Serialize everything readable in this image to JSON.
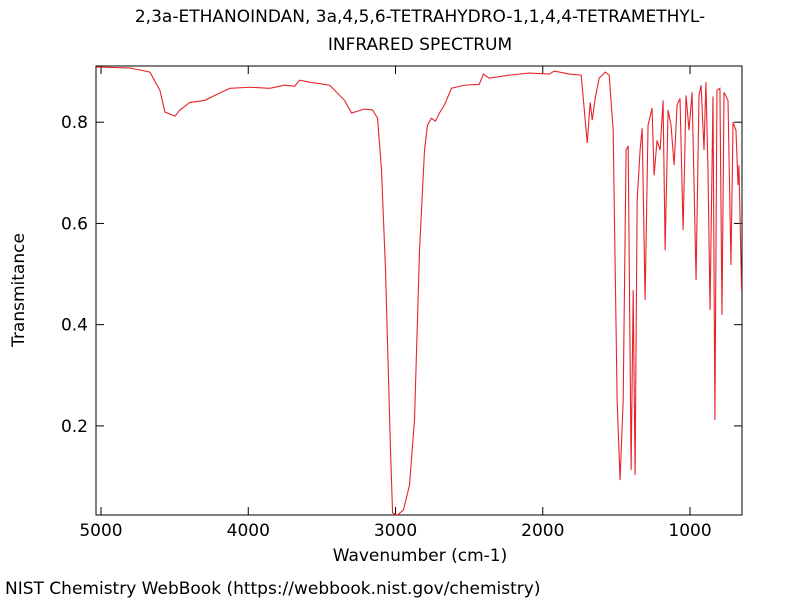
{
  "chart_data": {
    "type": "line",
    "title": [
      "2,3a-ETHANOINDAN, 3a,4,5,6-TETRAHYDRO-1,1,4,4-TETRAMETHYL-",
      "INFRARED SPECTRUM"
    ],
    "x_label": "Wavenumber (cm-1)",
    "y_label": "Transmitance",
    "footer": "NIST Chemistry WebBook (https://webbook.nist.gov/chemistry)",
    "color": "#e8232a",
    "xlim": [
      5034,
      647
    ],
    "ylim": [
      0.024,
      0.911
    ],
    "xticks": [
      5000,
      4000,
      3000,
      2000,
      1000
    ],
    "yticks": [
      0.2,
      0.4,
      0.6,
      0.8
    ],
    "x": [
      5034,
      4803,
      4668,
      4600,
      4566,
      4498,
      4464,
      4397,
      4295,
      4227,
      4125,
      3990,
      3854,
      3753,
      3685,
      3651,
      3583,
      3447,
      3346,
      3298,
      3210,
      3156,
      3122,
      3095,
      3068,
      3034,
      3020,
      2986,
      2946,
      2905,
      2871,
      2837,
      2803,
      2783,
      2756,
      2729,
      2702,
      2668,
      2620,
      2532,
      2431,
      2403,
      2363,
      2227,
      2092,
      1956,
      1922,
      1820,
      1739,
      1698,
      1678,
      1664,
      1644,
      1617,
      1576,
      1549,
      1522,
      1495,
      1475,
      1454,
      1434,
      1420,
      1400,
      1386,
      1373,
      1359,
      1339,
      1325,
      1305,
      1285,
      1258,
      1244,
      1224,
      1203,
      1183,
      1169,
      1149,
      1129,
      1108,
      1088,
      1068,
      1047,
      1027,
      1007,
      986,
      959,
      939,
      925,
      905,
      892,
      878,
      864,
      844,
      831,
      817,
      797,
      783,
      769,
      742,
      722,
      708,
      688,
      674,
      668,
      650
    ],
    "values": [
      0.909,
      0.907,
      0.899,
      0.863,
      0.82,
      0.812,
      0.824,
      0.839,
      0.843,
      0.853,
      0.867,
      0.869,
      0.867,
      0.873,
      0.871,
      0.883,
      0.879,
      0.873,
      0.843,
      0.818,
      0.826,
      0.824,
      0.808,
      0.705,
      0.508,
      0.152,
      0.028,
      0.024,
      0.034,
      0.083,
      0.212,
      0.547,
      0.745,
      0.794,
      0.808,
      0.802,
      0.818,
      0.834,
      0.867,
      0.873,
      0.875,
      0.895,
      0.887,
      0.893,
      0.897,
      0.895,
      0.901,
      0.895,
      0.893,
      0.759,
      0.839,
      0.804,
      0.847,
      0.887,
      0.899,
      0.893,
      0.784,
      0.251,
      0.093,
      0.251,
      0.745,
      0.753,
      0.113,
      0.468,
      0.103,
      0.645,
      0.745,
      0.788,
      0.449,
      0.794,
      0.828,
      0.695,
      0.764,
      0.745,
      0.843,
      0.547,
      0.824,
      0.794,
      0.715,
      0.834,
      0.847,
      0.587,
      0.853,
      0.784,
      0.859,
      0.488,
      0.853,
      0.873,
      0.745,
      0.879,
      0.705,
      0.429,
      0.851,
      0.212,
      0.863,
      0.867,
      0.419,
      0.859,
      0.843,
      0.518,
      0.8,
      0.784,
      0.676,
      0.715,
      0.468
    ]
  }
}
